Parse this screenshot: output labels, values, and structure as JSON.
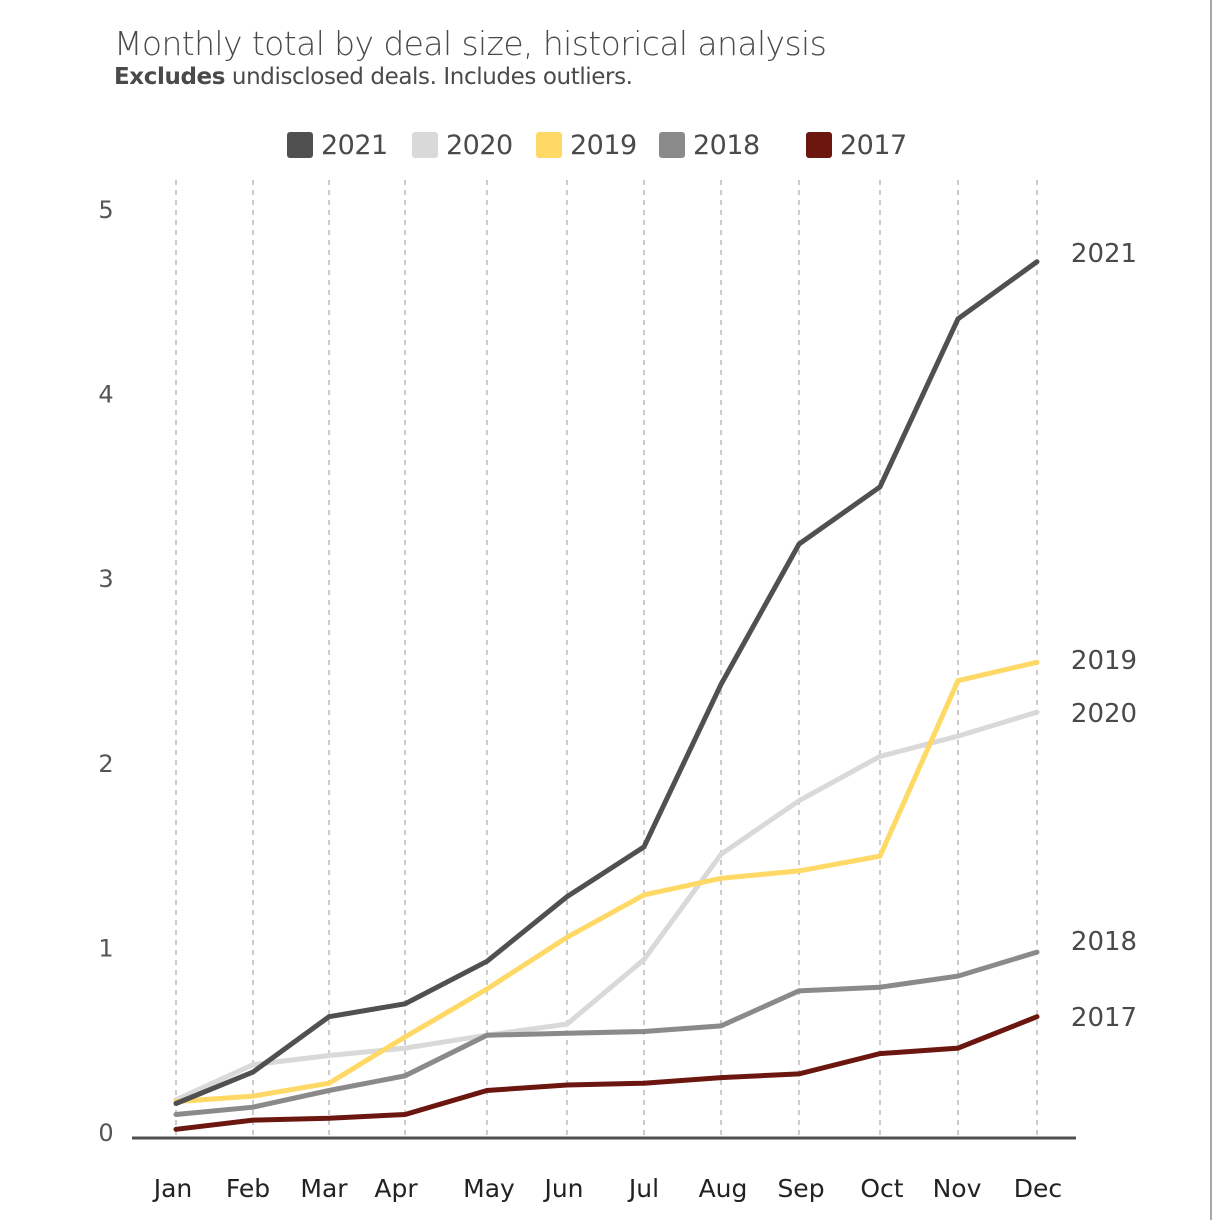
{
  "chart_data": {
    "type": "line",
    "title": "Monthly total by deal size, historical analysis",
    "subtitle_bold": "Excludes",
    "subtitle_rest": " undisclosed deals. Includes outliers.",
    "xlabel": "",
    "ylabel": "",
    "ylim": [
      0,
      5
    ],
    "yticks": [
      "0",
      "1",
      "2",
      "3",
      "4",
      "5"
    ],
    "grid": "vertical dashed",
    "legend_position": "top-center",
    "categories": [
      "Jan",
      "Feb",
      "Mar",
      "Apr",
      "May",
      "Jun",
      "Jul",
      "Aug",
      "Sep",
      "Oct",
      "Nov",
      "Dec"
    ],
    "series": [
      {
        "name": "2021",
        "color": "#505050",
        "values": [
          0.16,
          0.33,
          0.63,
          0.7,
          0.93,
          1.28,
          1.55,
          2.43,
          3.19,
          3.5,
          4.41,
          4.72
        ]
      },
      {
        "name": "2020",
        "color": "#d9d9d9",
        "values": [
          0.18,
          0.37,
          0.42,
          0.46,
          0.53,
          0.59,
          0.94,
          1.51,
          1.8,
          2.04,
          2.15,
          2.28
        ]
      },
      {
        "name": "2019",
        "color": "#ffd966",
        "values": [
          0.17,
          0.2,
          0.27,
          0.52,
          0.78,
          1.06,
          1.29,
          1.38,
          1.42,
          1.5,
          2.45,
          2.55
        ]
      },
      {
        "name": "2018",
        "color": "#8a8a8a",
        "values": [
          0.1,
          0.14,
          0.23,
          0.31,
          0.53,
          0.54,
          0.55,
          0.58,
          0.77,
          0.79,
          0.85,
          0.98
        ]
      },
      {
        "name": "2017",
        "color": "#6b1710",
        "values": [
          0.02,
          0.07,
          0.08,
          0.1,
          0.23,
          0.26,
          0.27,
          0.3,
          0.32,
          0.43,
          0.46,
          0.63
        ]
      }
    ],
    "end_labels": [
      "2021",
      "2019",
      "2020",
      "2018",
      "2017"
    ]
  }
}
